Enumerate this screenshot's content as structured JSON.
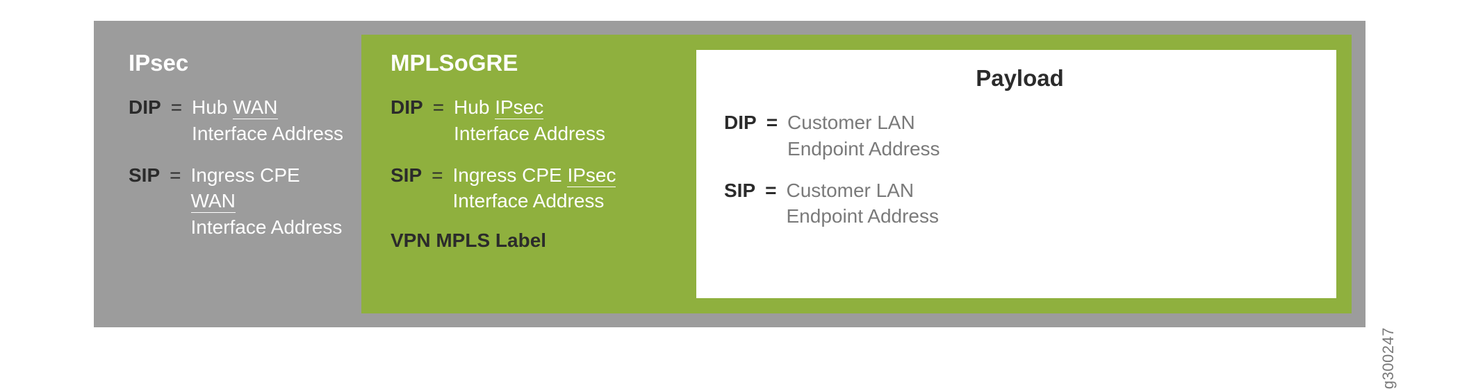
{
  "colors": {
    "outer_bg": "#9c9c9c",
    "green_bg": "#8fb03e",
    "white_bg": "#ffffff",
    "dark_text": "#2b2b2b",
    "gray_text": "#7a7a7a",
    "payload_title": "#2b2b2b"
  },
  "ipsec": {
    "title": "IPsec",
    "dip_label": "DIP",
    "dip_value_pre": "Hub ",
    "dip_value_u": "WAN",
    "dip_value_post": " Interface Address",
    "sip_label": "SIP",
    "sip_value_pre": "Ingress CPE ",
    "sip_value_u": "WAN",
    "sip_value_post": " Interface Address"
  },
  "mplsogre": {
    "title": "MPLSoGRE",
    "dip_label": "DIP",
    "dip_value_pre": "Hub ",
    "dip_value_u": "IPsec",
    "dip_value_post": " Interface Address",
    "sip_label": "SIP",
    "sip_value_pre": "Ingress CPE ",
    "sip_value_u": "IPsec",
    "sip_value_post": " Interface Address",
    "footer": "VPN MPLS Label"
  },
  "payload": {
    "title": "Payload",
    "dip_label": "DIP",
    "dip_value": "Customer LAN Endpoint Address",
    "sip_label": "SIP",
    "sip_value": "Customer LAN Endpoint Address"
  },
  "eq": "=",
  "figure_id": "g300247"
}
